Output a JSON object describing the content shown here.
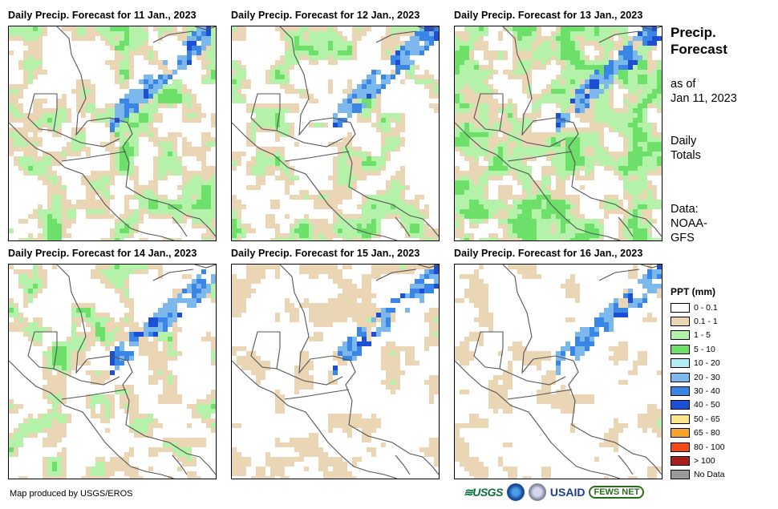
{
  "panels": [
    {
      "title": "Daily Precip. Forecast for 11 Jan., 2023",
      "day": 0
    },
    {
      "title": "Daily Precip. Forecast for 12 Jan., 2023",
      "day": 1
    },
    {
      "title": "Daily Precip. Forecast for 13 Jan., 2023",
      "day": 2
    },
    {
      "title": "Daily Precip. Forecast for 14 Jan., 2023",
      "day": 3
    },
    {
      "title": "Daily Precip. Forecast for 15 Jan., 2023",
      "day": 4
    },
    {
      "title": "Daily Precip. Forecast for 16 Jan., 2023",
      "day": 5
    }
  ],
  "sidebar": {
    "title_line1": "Precip.",
    "title_line2": "Forecast",
    "asof_line1": "as of",
    "asof_line2": "Jan 11, 2023",
    "totals_line1": "Daily",
    "totals_line2": "Totals",
    "data_line1": "Data:",
    "data_line2": "NOAA-",
    "data_line3": "GFS"
  },
  "legend": {
    "title": "PPT (mm)",
    "items": [
      {
        "label": "0 - 0.1",
        "color": "#ffffff"
      },
      {
        "label": "0.1 - 1",
        "color": "#ead6b4"
      },
      {
        "label": "1 - 5",
        "color": "#b3f2a8"
      },
      {
        "label": "5 - 10",
        "color": "#6de06a"
      },
      {
        "label": "10 - 20",
        "color": "#b4ecf5"
      },
      {
        "label": "20 - 30",
        "color": "#7cb8ec"
      },
      {
        "label": "30 - 40",
        "color": "#3a86e6"
      },
      {
        "label": "40 - 50",
        "color": "#1d4fd4"
      },
      {
        "label": "50 - 65",
        "color": "#fbe58a"
      },
      {
        "label": "65 - 80",
        "color": "#f7a42a"
      },
      {
        "label": "80 - 100",
        "color": "#f24a16"
      },
      {
        "label": "> 100",
        "color": "#a51e1e"
      },
      {
        "label": "No Data",
        "color": "#999999"
      }
    ]
  },
  "footer": {
    "credit": "Map produced by USGS/EROS",
    "logo_usgs": "≋USGS",
    "logo_usaid": "USAID",
    "logo_fews": "FEWS NET"
  }
}
